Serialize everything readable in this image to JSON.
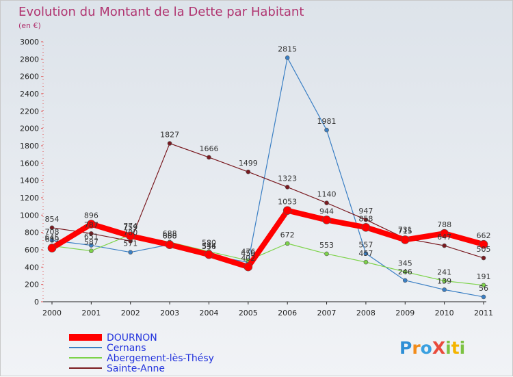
{
  "chart_data": {
    "type": "line",
    "title": "Evolution du Montant de la Dette par Habitant",
    "subtitle": "(en €)",
    "xlabel": "",
    "ylabel": "",
    "categories": [
      "2000",
      "2001",
      "2002",
      "2003",
      "2004",
      "2005",
      "2006",
      "2007",
      "2008",
      "2009",
      "2010",
      "2011"
    ],
    "ylim": [
      0,
      3000
    ],
    "yticks": [
      0,
      200,
      400,
      600,
      800,
      1000,
      1200,
      1400,
      1600,
      1800,
      2000,
      2200,
      2400,
      2600,
      2800,
      3000
    ],
    "grid": false,
    "legend_position": "bottom-left",
    "series": [
      {
        "name": "DOURNON",
        "color": "#ff0000",
        "values": [
          619,
          896,
          759,
          658,
          544,
          402,
          1053,
          944,
          858,
          715,
          788,
          662
        ]
      },
      {
        "name": "Cernans",
        "color": "#3a7fc4",
        "values": [
          708,
          651,
          571,
          660,
          536,
          456,
          2815,
          1981,
          557,
          246,
          139,
          56
        ]
      },
      {
        "name": "Abergement-lès-Thésy",
        "color": "#7dd34a",
        "values": [
          645,
          587,
          774,
          688,
          580,
          476,
          672,
          553,
          457,
          345,
          241,
          191
        ]
      },
      {
        "name": "Sainte-Anne",
        "color": "#7a1a20",
        "values": [
          854,
          787,
          700,
          1827,
          1666,
          1499,
          1323,
          1140,
          947,
          731,
          647,
          505
        ]
      }
    ],
    "labels": {
      "DOURNON": [
        "619",
        "896",
        "759",
        "658",
        "544",
        "402",
        "1053",
        "944",
        "858",
        "715",
        "788",
        "662"
      ],
      "Cernans": [
        "708",
        "651",
        "571",
        "660",
        "536",
        "456",
        "2815",
        "1981",
        "557",
        "246",
        "139",
        "56"
      ],
      "Abergement-lès-Thésy": [
        "645",
        "587",
        "774",
        "688",
        "580",
        "476",
        "672",
        "553",
        "457",
        "345",
        "241",
        "191"
      ],
      "Sainte-Anne": [
        "854",
        "787",
        "700",
        "1827",
        "1666",
        "1499",
        "1323",
        "1140",
        "947",
        "731",
        "647",
        "505"
      ]
    }
  },
  "logo": {
    "text": "ProXiti"
  }
}
